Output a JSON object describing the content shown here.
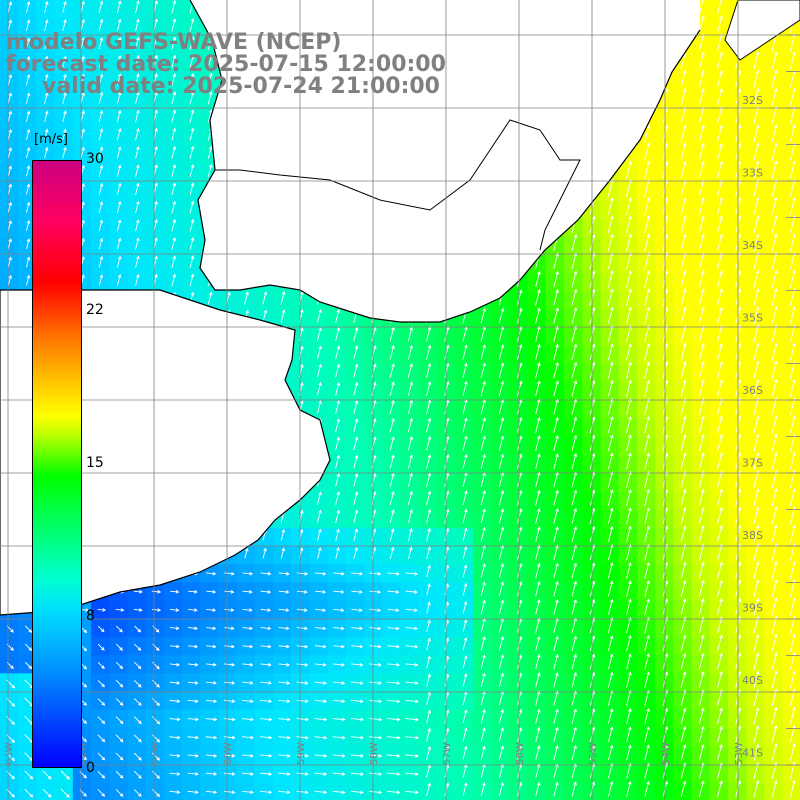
{
  "title": {
    "line1": "modelo GEFS-WAVE (NCEP)",
    "line2": "forecast date: 2025-07-15 12:00:00",
    "line3": "valid date: 2025-07-24 21:00:00"
  },
  "colorbar": {
    "unit": "[m/s]",
    "ticks": [
      "30",
      "22",
      "15",
      "8",
      "0"
    ]
  },
  "lat_labels": [
    "32S",
    "33S",
    "34S",
    "35S",
    "36S",
    "37S",
    "38S",
    "39S",
    "40S",
    "41S"
  ],
  "lon_labels": [
    "63W",
    "62W",
    "61W",
    "60W",
    "59W",
    "58W",
    "57W",
    "56W",
    "55W",
    "54W",
    "53W"
  ],
  "colors": {
    "land": "#ffffff",
    "coast": "#000000",
    "grid": "#808080",
    "arrow": "#ffffff",
    "title": "#808080"
  },
  "chart_data": {
    "type": "heatmap",
    "variable": "wind speed",
    "unit": "m/s",
    "value_range": [
      0,
      30
    ],
    "arrow_direction": "mostly from the south/southwest, northward over the open sea; southeastward in the southwest corner"
  }
}
